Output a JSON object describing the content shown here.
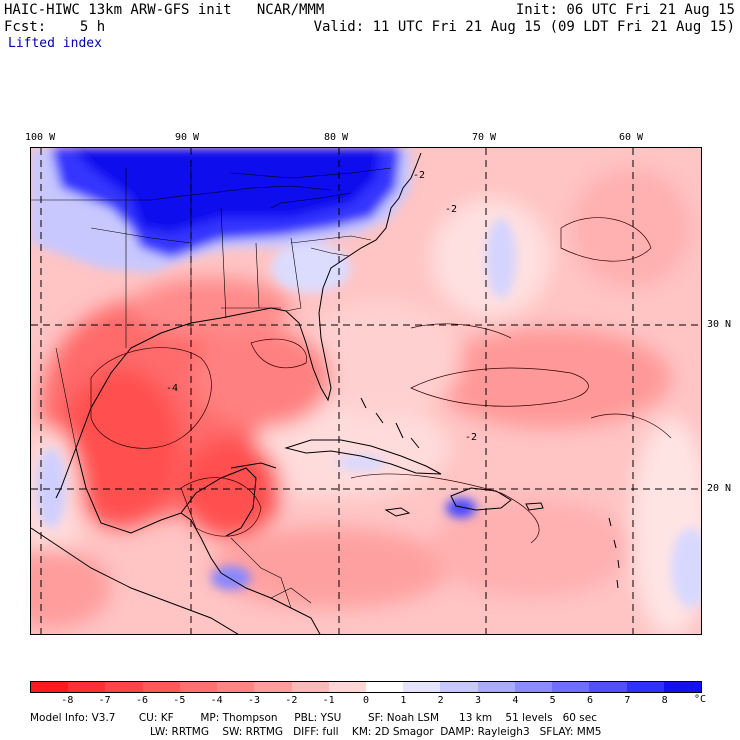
{
  "header": {
    "title_left": "HAIC-HIWC 13km ARW-GFS init   NCAR/MMM",
    "init": "Init: 06 UTC Fri 21 Aug 15",
    "fcst": "Fcst:    5 h",
    "valid": "Valid: 11 UTC Fri 21 Aug 15 (09 LDT Fri 21 Aug 15)",
    "field": "Lifted index"
  },
  "map": {
    "lon_labels": [
      "100 W",
      "90 W",
      "80 W",
      "70 W",
      "60 W"
    ],
    "lat_labels": [
      "30 N",
      "20 N"
    ],
    "contour_labels": [
      "-2",
      "-2",
      "-2",
      "-4"
    ]
  },
  "colorbar": {
    "labels": [
      "-8",
      "-7",
      "-6",
      "-5",
      "-4",
      "-3",
      "-2",
      "-1",
      "0",
      "1",
      "2",
      "3",
      "4",
      "5",
      "6",
      "7",
      "8"
    ],
    "unit": "°C",
    "colors": [
      "#ff1a1a",
      "#ff3030",
      "#ff4545",
      "#ff5a5a",
      "#ff7070",
      "#ff8585",
      "#ff9c9c",
      "#ffb8b8",
      "#ffd6d6",
      "#ffffff",
      "#e4e4ff",
      "#c8c8ff",
      "#aaaaff",
      "#8c8cff",
      "#6e6eff",
      "#5050ff",
      "#3030ff",
      "#1212f0"
    ]
  },
  "footer": {
    "line1": "Model Info: V3.7       CU: KF        MP: Thompson     PBL: YSU        SF: Noah LSM      13 km    51 levels   60 sec",
    "line2": "LW: RRTMG    SW: RRTMG   DIFF: full    KM: 2D Smagor  DAMP: Rayleigh3   SFLAY: MM5"
  }
}
